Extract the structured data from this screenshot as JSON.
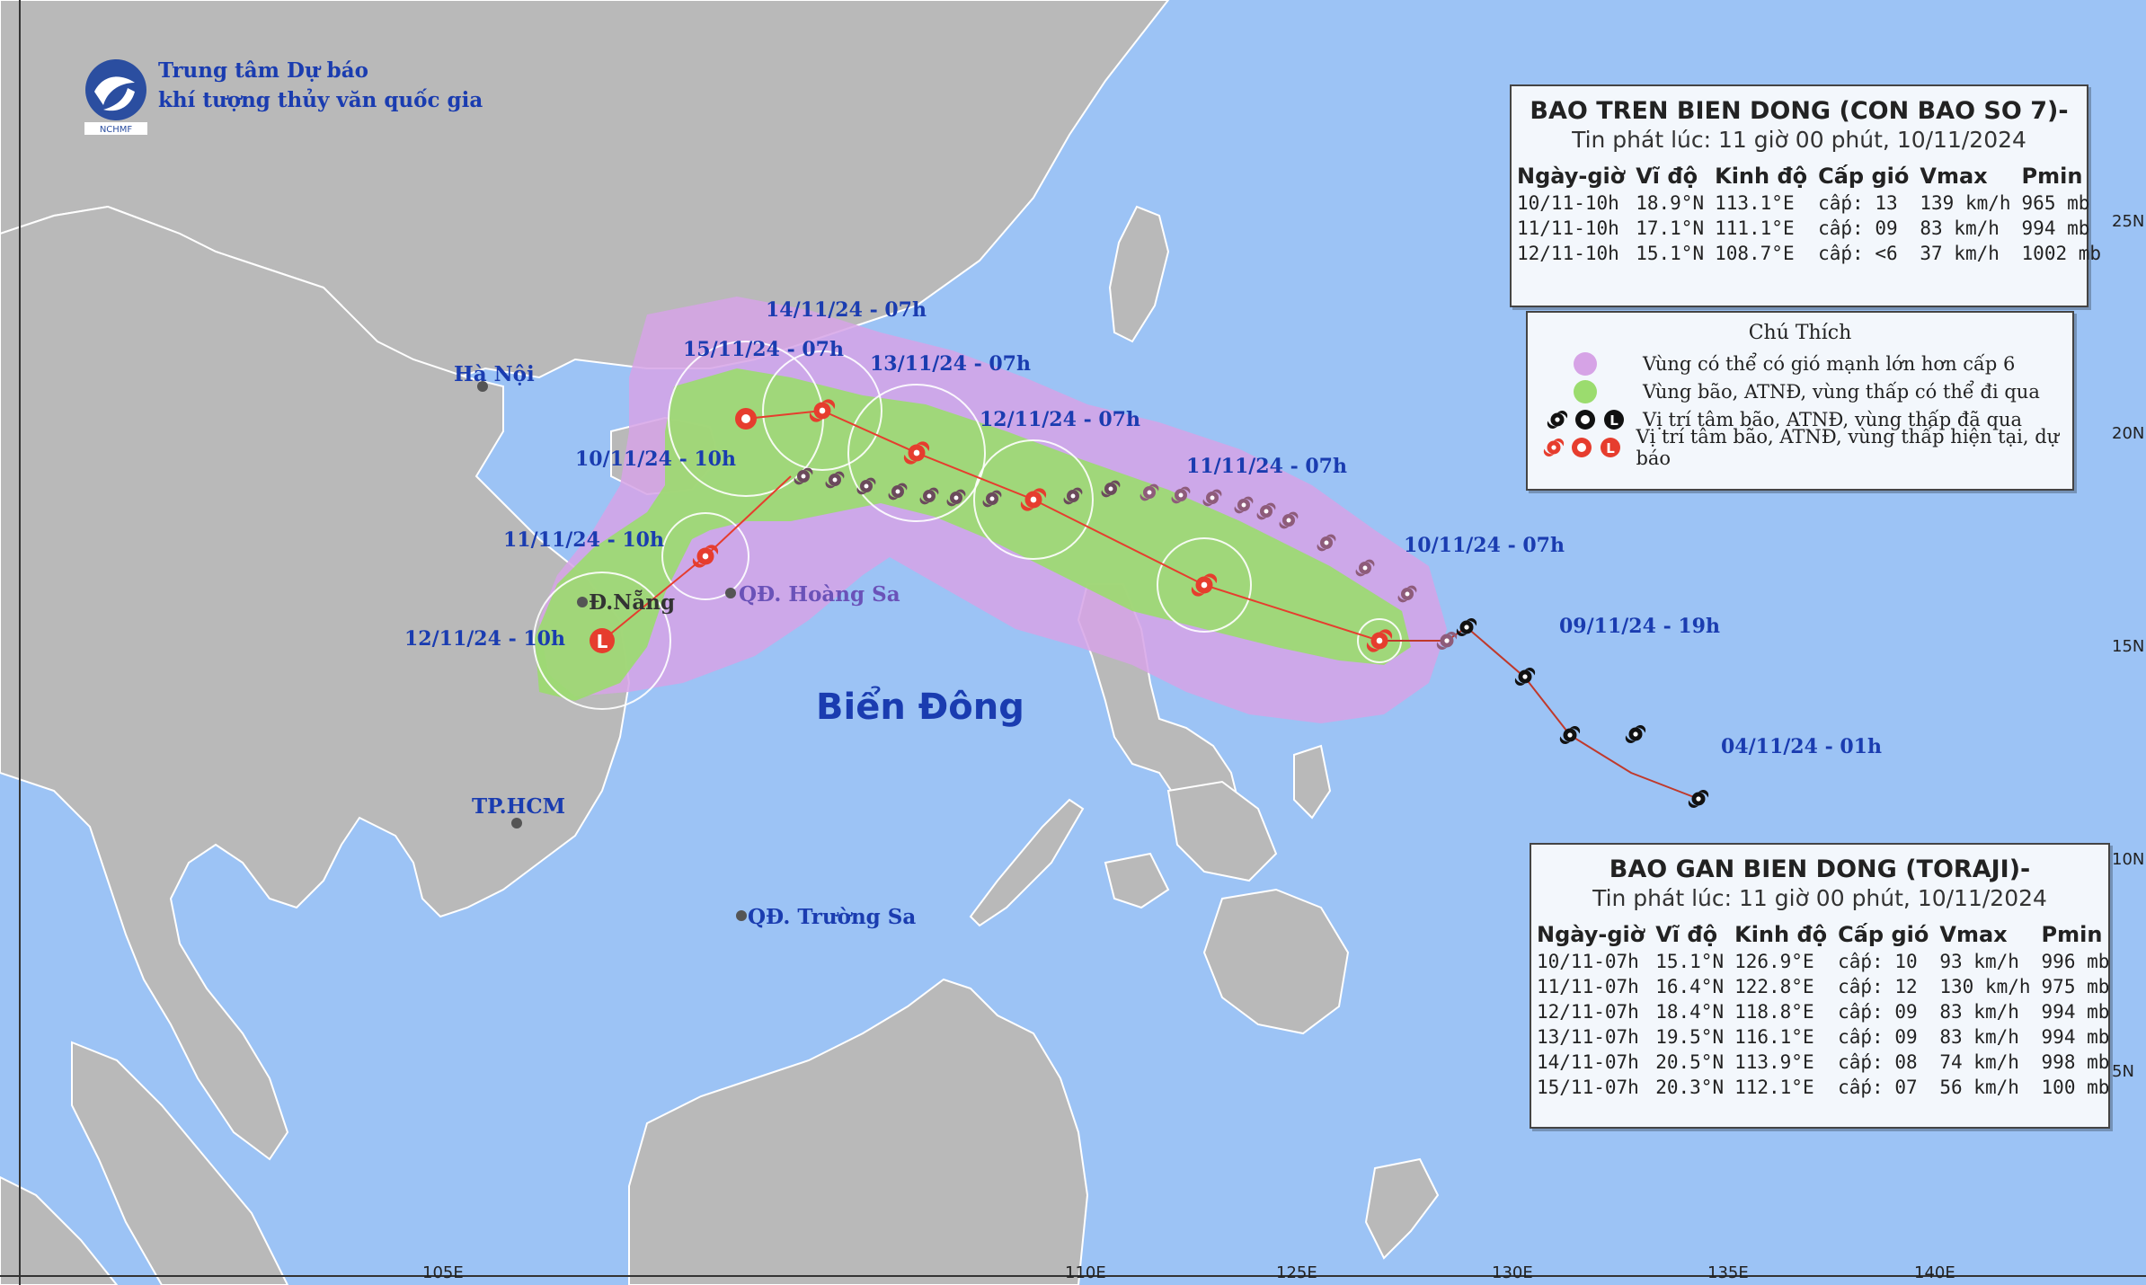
{
  "agency": {
    "line1": "Trung tâm Dự báo",
    "line2": "khí tượng thủy văn quốc gia",
    "logo_text": "NCHMF"
  },
  "map": {
    "sea_label": "Biển Đông",
    "cities": [
      {
        "key": "hanoi",
        "label": "Hà Nội"
      },
      {
        "key": "danang",
        "label": "Đ.Nẵng"
      },
      {
        "key": "hcm",
        "label": "TP.HCM"
      }
    ],
    "islands": [
      {
        "key": "hoangsa",
        "label": "QĐ. Hoàng Sa"
      },
      {
        "key": "truongsa",
        "label": "QĐ. Trường Sa"
      }
    ],
    "lon_labels": [
      "105E",
      "110E",
      "125E",
      "130E",
      "135E",
      "140E"
    ],
    "lat_labels": [
      "25N",
      "20N",
      "15N",
      "10N",
      "5N"
    ],
    "colors": {
      "sea": "#9cc3f5",
      "land": "#b9b9b9",
      "danger_zone": "#d6a3e6",
      "storm_zone": "#9bdc6e",
      "past_icon": "#8e5c7a",
      "forecast_icon": "#e63d2e",
      "label_text": "#1a3cb0"
    }
  },
  "storm7": {
    "time_labels": {
      "t1": "10/11/24 - 10h",
      "t2": "11/11/24 - 10h",
      "t3": "12/11/24 - 10h"
    },
    "panel": {
      "title": "BAO TREN BIEN DONG (CON BAO SO 7)-",
      "issued": "Tin phát lúc: 11 giờ 00 phút, 10/11/2024",
      "headers": [
        "Ngày-giờ",
        "Vĩ độ",
        "Kinh độ",
        "Cấp gió",
        "Vmax",
        "Pmin"
      ],
      "rows": [
        [
          "10/11-10h",
          "18.9°N",
          "113.1°E",
          "cấp: 13",
          "139 km/h",
          "965 mb"
        ],
        [
          "11/11-10h",
          "17.1°N",
          "111.1°E",
          "cấp: 09",
          "83 km/h",
          "994 mb"
        ],
        [
          "12/11-10h",
          "15.1°N",
          "108.7°E",
          "cấp: <6",
          "37 km/h",
          "1002 mb"
        ]
      ]
    }
  },
  "toraji": {
    "time_labels": {
      "t0": "04/11/24 - 01h",
      "t1": "09/11/24 - 19h",
      "t2": "10/11/24 - 07h",
      "t3": "11/11/24 - 07h",
      "t4": "12/11/24 - 07h",
      "t5": "13/11/24 - 07h",
      "t6": "14/11/24 - 07h",
      "t7": "15/11/24 - 07h"
    },
    "panel": {
      "title": "BAO GAN BIEN DONG (TORAJI)-",
      "issued": "Tin phát lúc: 11 giờ 00 phút, 10/11/2024",
      "headers": [
        "Ngày-giờ",
        "Vĩ độ",
        "Kinh độ",
        "Cấp gió",
        "Vmax",
        "Pmin"
      ],
      "rows": [
        [
          "10/11-07h",
          "15.1°N",
          "126.9°E",
          "cấp: 10",
          "93 km/h",
          "996 mb"
        ],
        [
          "11/11-07h",
          "16.4°N",
          "122.8°E",
          "cấp: 12",
          "130 km/h",
          "975 mb"
        ],
        [
          "12/11-07h",
          "18.4°N",
          "118.8°E",
          "cấp: 09",
          "83 km/h",
          "994 mb"
        ],
        [
          "13/11-07h",
          "19.5°N",
          "116.1°E",
          "cấp: 09",
          "83 km/h",
          "994 mb"
        ],
        [
          "14/11-07h",
          "20.5°N",
          "113.9°E",
          "cấp: 08",
          "74 km/h",
          "998 mb"
        ],
        [
          "15/11-07h",
          "20.3°N",
          "112.1°E",
          "cấp: 07",
          "56 km/h",
          "100 mb"
        ]
      ]
    }
  },
  "legend": {
    "title": "Chú Thích",
    "items": [
      "Vùng có thể có gió mạnh lớn hơn cấp 6",
      "Vùng bão, ATNĐ, vùng thấp có thể đi qua",
      "Vị trí tâm bão, ATNĐ, vùng thấp đã qua",
      "Vị trí tâm bão, ATNĐ, vùng thấp hiện tại, dự báo"
    ]
  }
}
